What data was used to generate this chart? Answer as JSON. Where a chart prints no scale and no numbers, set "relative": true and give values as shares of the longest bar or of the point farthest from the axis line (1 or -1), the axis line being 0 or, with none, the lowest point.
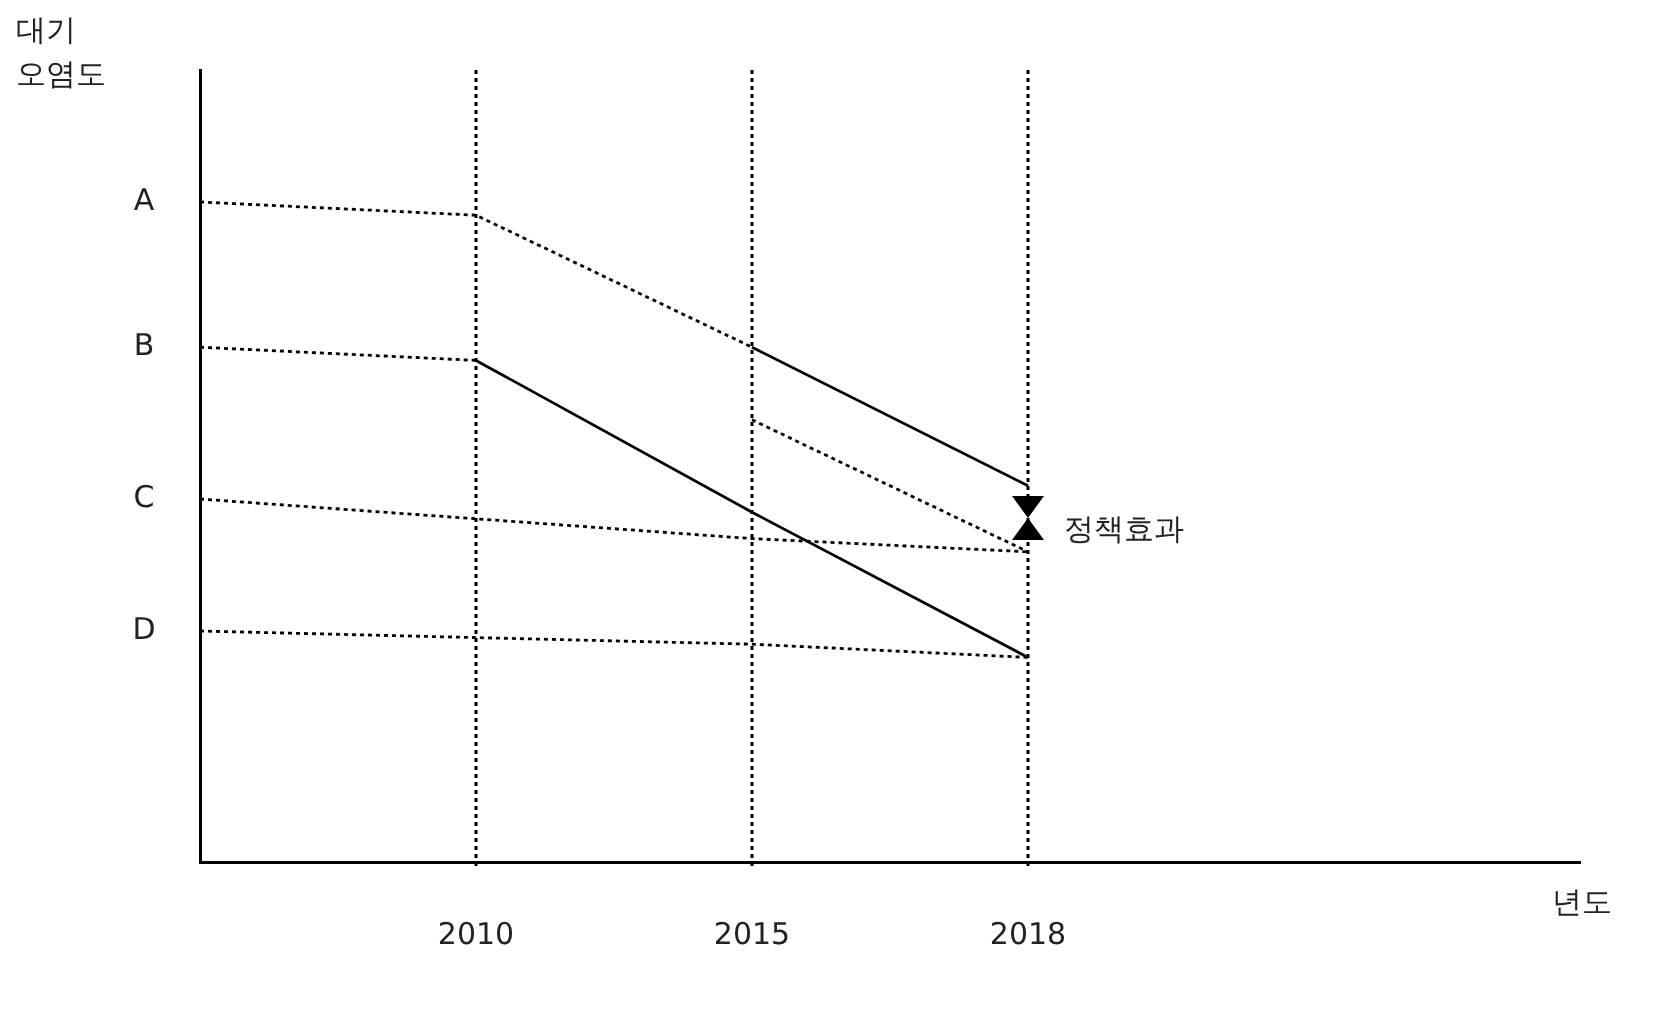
{
  "chart_data": {
    "type": "line",
    "relative": true,
    "ylabel": "대기\n오염도",
    "xlabel": "년도",
    "categories": [
      null,
      "2010",
      "2015",
      "2018",
      null,
      null
    ],
    "series": [
      {
        "name": "A",
        "color": "#000000",
        "line_style": "dotted",
        "values": [
          1.0,
          0.98,
          0.78,
          null,
          null,
          null
        ]
      },
      {
        "color": "#000000",
        "line_style": "solid",
        "values": [
          null,
          null,
          0.78,
          0.57,
          null,
          null
        ]
      },
      {
        "color": "#000000",
        "line_style": "dotted",
        "values": [
          null,
          null,
          0.67,
          0.47,
          null,
          null
        ]
      },
      {
        "name": "B",
        "color": "#000000",
        "line_style": "dotted",
        "values": [
          0.78,
          0.76,
          null,
          null,
          null,
          null
        ]
      },
      {
        "color": "#000000",
        "line_style": "solid",
        "values": [
          null,
          0.76,
          0.53,
          0.31,
          null,
          null
        ]
      },
      {
        "name": "C",
        "color": "#000000",
        "line_style": "dotted",
        "values": [
          0.55,
          0.52,
          0.49,
          0.47,
          null,
          null
        ]
      },
      {
        "name": "D",
        "color": "#000000",
        "line_style": "dotted",
        "values": [
          0.35,
          0.34,
          0.33,
          0.31,
          null,
          null
        ]
      }
    ],
    "ref_lines": [
      {
        "axis": "x",
        "value": "2010",
        "color": "#000000",
        "line_style": "dotted"
      },
      {
        "axis": "x",
        "value": "2015",
        "color": "#000000",
        "line_style": "dotted"
      },
      {
        "axis": "x",
        "value": "2018",
        "color": "#000000",
        "line_style": "dotted"
      }
    ],
    "annotations": [
      {
        "text": "정책효과",
        "x": "2018",
        "y": 0.52
      }
    ],
    "marker": "none",
    "grid": false,
    "legend": false
  }
}
